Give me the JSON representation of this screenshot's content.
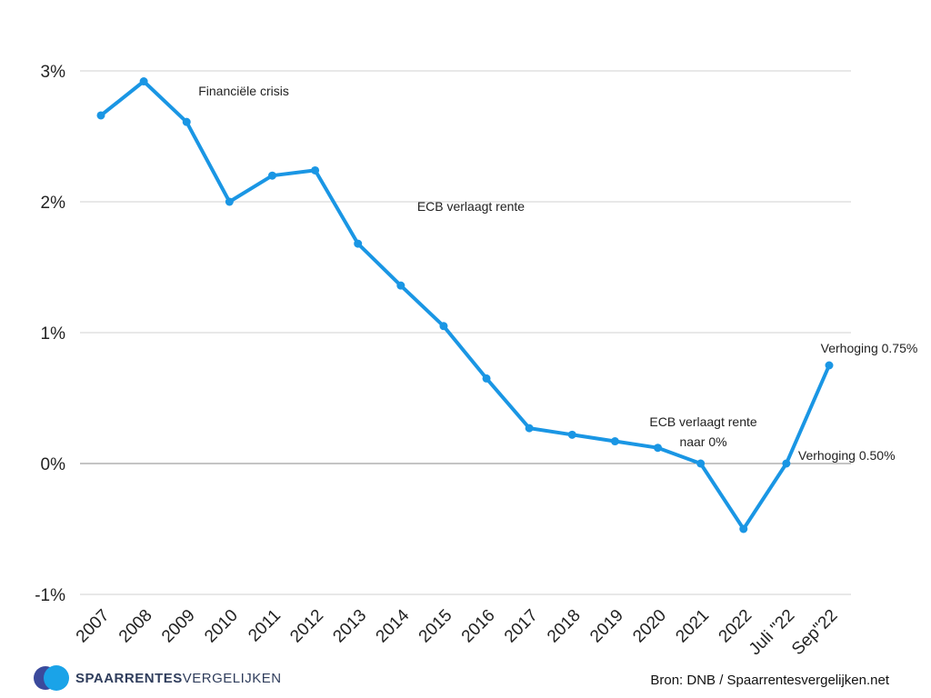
{
  "chart_data": {
    "type": "line",
    "categories": [
      "2007",
      "2008",
      "2009",
      "2010",
      "2011",
      "2012",
      "2013",
      "2014",
      "2015",
      "2016",
      "2017",
      "2018",
      "2019",
      "2020",
      "2021",
      "2022",
      "Juli \"22",
      "Sep\"22"
    ],
    "series": [
      {
        "values": [
          2.66,
          2.92,
          2.61,
          2.0,
          2.2,
          2.24,
          1.68,
          1.36,
          1.05,
          0.65,
          0.27,
          0.22,
          0.17,
          0.12,
          0.0,
          -0.5,
          0.0,
          0.75
        ]
      }
    ],
    "y_ticks": [
      {
        "value": 3,
        "label": "3%"
      },
      {
        "value": 2,
        "label": "2%"
      },
      {
        "value": 1,
        "label": "1%"
      },
      {
        "value": 0,
        "label": "0%"
      },
      {
        "value": -1,
        "label": "-1%"
      }
    ],
    "ylim": [
      -1,
      3
    ],
    "grid": true,
    "line_color": "#1a96e4",
    "grid_color": "#d0d0d0",
    "zero_line_color": "#888888",
    "annotations": [
      {
        "text": "Financiële crisis",
        "x": "2009"
      },
      {
        "text": "ECB verlaagt rente",
        "x": "2014"
      },
      {
        "lines": [
          "ECB verlaagt rente",
          "naar 0%"
        ],
        "x": "2020"
      },
      {
        "text": "Verhoging 0.50%",
        "x": "Juli \"22"
      },
      {
        "text": "Verhoging 0.75%",
        "x": "Sep\"22"
      }
    ]
  },
  "footer": {
    "logo_bold": "SPAARRENTES",
    "logo_light": "VERGELIJKEN",
    "source": "Bron: DNB / Spaarrentesvergelijken.net"
  }
}
